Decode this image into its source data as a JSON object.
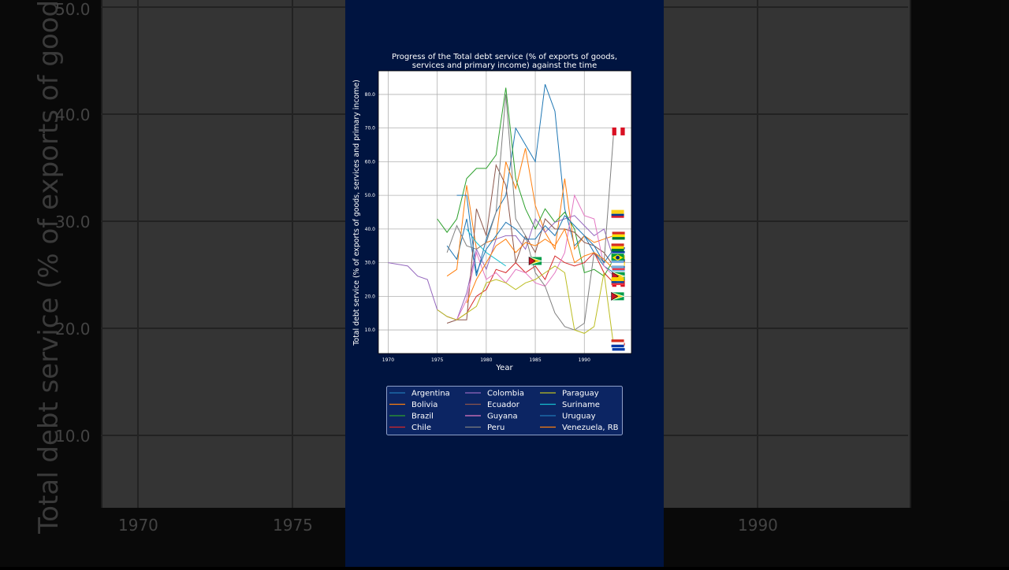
{
  "background": {
    "ylabel": "Total debt service (% of exports of goods",
    "yticks": [
      "50.0",
      "40.0",
      "30.0",
      "20.0",
      "10.0"
    ],
    "xticks": [
      "1970",
      "1975",
      "1990"
    ]
  },
  "colors": {
    "panel": "#001440",
    "legend_bg": "#0c2563",
    "legend_border": "#8fa0c8"
  },
  "chart_data": {
    "type": "line",
    "title": "Progress of the Total debt service (% of exports of goods, services and primary income) against the time",
    "title_lines": [
      "Progress of the Total debt service (% of exports of goods,",
      "services and primary income) against the time"
    ],
    "xlabel": "Year",
    "ylabel": "Total debt service (% of exports of goods, services and primary income)",
    "xlim": [
      1969,
      1994.8
    ],
    "ylim": [
      3,
      87
    ],
    "xticks": [
      1970,
      1975,
      1980,
      1985,
      1990
    ],
    "yticks": [
      10.0,
      20.0,
      30.0,
      40.0,
      50.0,
      60.0,
      70.0,
      80.0
    ],
    "grid": true,
    "legend_position": "bottom",
    "series": [
      {
        "name": "Argentina",
        "color": "#1f77b4",
        "flag": "argentina",
        "x": [
          1976,
          1977,
          1978,
          1979,
          1980,
          1981,
          1982,
          1983,
          1984,
          1985,
          1986,
          1987,
          1988,
          1989,
          1990,
          1991,
          1992,
          1993
        ],
        "y": [
          35,
          31,
          43,
          26,
          37,
          45,
          50,
          70,
          65,
          60,
          83,
          75,
          46,
          35,
          38,
          33,
          29,
          27
        ]
      },
      {
        "name": "Bolivia",
        "color": "#ff7f0e",
        "flag": "bolivia",
        "x": [
          1976,
          1977,
          1978,
          1979,
          1980,
          1981,
          1982,
          1983,
          1984,
          1985,
          1986,
          1987,
          1988,
          1989,
          1990,
          1991,
          1992,
          1993
        ],
        "y": [
          26,
          28,
          53,
          34,
          36,
          37,
          60,
          52,
          64,
          47,
          39,
          34,
          55,
          34,
          38,
          36,
          37,
          38
        ]
      },
      {
        "name": "Brazil",
        "color": "#2ca02c",
        "flag": "brazil",
        "x": [
          1975,
          1976,
          1977,
          1978,
          1979,
          1980,
          1981,
          1982,
          1983,
          1984,
          1985,
          1986,
          1987,
          1988,
          1989,
          1990,
          1991,
          1992,
          1993
        ],
        "y": [
          43,
          39,
          43,
          55,
          58,
          58,
          62,
          82,
          55,
          46,
          40,
          46,
          42,
          45,
          40,
          27,
          28,
          26,
          31
        ]
      },
      {
        "name": "Chile",
        "color": "#d62728",
        "flag": "peru",
        "x": [
          1976,
          1977,
          1978,
          1979,
          1980,
          1981,
          1982,
          1983,
          1984,
          1985,
          1986,
          1987,
          1988,
          1989,
          1990,
          1991,
          1992,
          1993
        ],
        "y": [
          14,
          13,
          15,
          20,
          22,
          28,
          27,
          30,
          27,
          29,
          25,
          32,
          30,
          29,
          30,
          33,
          27,
          24
        ]
      },
      {
        "name": "Colombia",
        "color": "#9467bd",
        "flag": "colombia",
        "x": [
          1970,
          1971,
          1972,
          1973,
          1974,
          1975,
          1976,
          1977,
          1978,
          1979,
          1980,
          1981,
          1982,
          1983,
          1984,
          1985,
          1986,
          1987,
          1988,
          1989,
          1990,
          1991,
          1992,
          1993
        ],
        "y": [
          30,
          29.5,
          29,
          26,
          25,
          16,
          14,
          13,
          21,
          34,
          28,
          37,
          38,
          38,
          34,
          43,
          39,
          42,
          43,
          44,
          41,
          38,
          40,
          31
        ]
      },
      {
        "name": "Ecuador",
        "color": "#8c564b",
        "flag": "ecuador",
        "x": [
          1976,
          1977,
          1978,
          1979,
          1980,
          1981,
          1982,
          1983,
          1984,
          1985,
          1986,
          1987,
          1988,
          1989,
          1990,
          1991,
          1992,
          1993
        ],
        "y": [
          12,
          13,
          13,
          46,
          38,
          59,
          53,
          30,
          38,
          33,
          43,
          40,
          40,
          39,
          36,
          35,
          33,
          29
        ]
      },
      {
        "name": "Guyana",
        "color": "#e377c2",
        "flag": "guyana",
        "x": [
          1976,
          1977,
          1978,
          1979,
          1980,
          1981,
          1982,
          1983,
          1984,
          1985,
          1986,
          1987,
          1988,
          1989,
          1990,
          1991,
          1992,
          1993
        ],
        "y": [
          14,
          13,
          19,
          33,
          25,
          27,
          24,
          28,
          27,
          24,
          23,
          27,
          33,
          50,
          44,
          43,
          29,
          26
        ]
      },
      {
        "name": "Peru",
        "color": "#7f7f7f",
        "flag": "peru",
        "x": [
          1976,
          1977,
          1978,
          1979,
          1980,
          1981,
          1982,
          1983,
          1984,
          1985,
          1986,
          1987,
          1988,
          1989,
          1990,
          1991,
          1992,
          1993
        ],
        "y": [
          33,
          41,
          35,
          34,
          36,
          45,
          80,
          43,
          38,
          27,
          23,
          15,
          11,
          10,
          12,
          33,
          30,
          69
        ]
      },
      {
        "name": "Paraguay",
        "color": "#bcbd22",
        "flag": "paraguay",
        "x": [
          1975,
          1976,
          1977,
          1978,
          1979,
          1980,
          1981,
          1982,
          1983,
          1984,
          1985,
          1986,
          1987,
          1988,
          1989,
          1990,
          1991,
          1992,
          1993
        ],
        "y": [
          16,
          14,
          13,
          15,
          17,
          24,
          25,
          24,
          22,
          24,
          25,
          27,
          29,
          27,
          10,
          9,
          11,
          27,
          5
        ]
      },
      {
        "name": "Suriname",
        "color": "#17becf",
        "flag": "",
        "x": [
          1978,
          1979,
          1980,
          1981,
          1982
        ],
        "y": [
          40,
          36,
          33,
          31,
          29
        ]
      },
      {
        "name": "Uruguay",
        "color": "#1f77b4",
        "flag": "uruguay",
        "x": [
          1977,
          1978,
          1979,
          1980,
          1981,
          1982,
          1983,
          1984,
          1985,
          1986,
          1987,
          1988,
          1989,
          1990,
          1991,
          1992,
          1993
        ],
        "y": [
          50,
          50,
          27,
          34,
          38,
          42,
          40,
          37,
          37,
          41,
          38,
          44,
          41,
          38,
          35,
          30,
          34
        ]
      },
      {
        "name": "Venezuela, RB",
        "color": "#ff7f0e",
        "flag": "",
        "x": [
          1978,
          1979,
          1980,
          1981,
          1982,
          1983,
          1984,
          1985,
          1986,
          1987,
          1988,
          1989,
          1990,
          1991,
          1992,
          1993
        ],
        "y": [
          18,
          25,
          30,
          35,
          37,
          33,
          36,
          35,
          37,
          35,
          40,
          30,
          32,
          33,
          31,
          28
        ]
      }
    ]
  }
}
